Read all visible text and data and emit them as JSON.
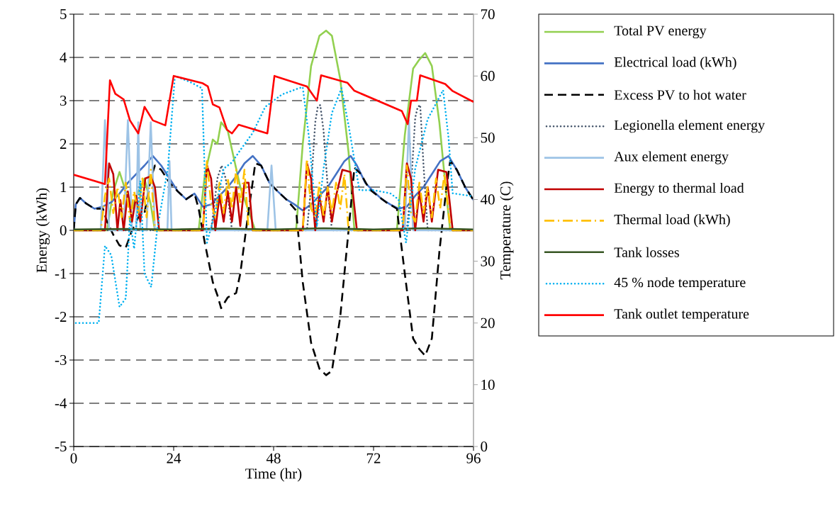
{
  "chart_data": {
    "type": "line",
    "xlabel": "Time (hr)",
    "ylabel": "Energy (kWh)",
    "y2label": "Temperature (C)",
    "xlim": [
      0,
      96
    ],
    "xticks": [
      0,
      24,
      48,
      72,
      96
    ],
    "ylim": [
      -5,
      5
    ],
    "yticks": [
      -5,
      -4,
      -3,
      -2,
      -1,
      0,
      1,
      2,
      3,
      4,
      5
    ],
    "y2lim": [
      0,
      70
    ],
    "y2ticks": [
      0,
      10,
      20,
      30,
      40,
      50,
      60,
      70
    ],
    "grid": "y",
    "legend": "right",
    "series": [
      {
        "name": "Total PV energy",
        "color": "#92d050",
        "line_style": "solid",
        "x": [
          0,
          8,
          9.5,
          11,
          12.5,
          14,
          15.5,
          17,
          18.5,
          19.5,
          30,
          31.5,
          33.4,
          34.5,
          35.4,
          37,
          40,
          43.6,
          53.4,
          55,
          57,
          59,
          60.6,
          62,
          64,
          66,
          67.4,
          77.6,
          79.5,
          81.5,
          83,
          84.4,
          86,
          87.8,
          89.5,
          90.4,
          96
        ],
        "values": [
          0,
          0,
          0.9,
          1.35,
          0.9,
          0.5,
          0.9,
          1.2,
          0.6,
          0,
          0,
          1.3,
          2.1,
          2.0,
          2.5,
          2.3,
          1.0,
          0,
          0,
          2.0,
          3.8,
          4.5,
          4.62,
          4.5,
          3.5,
          1.8,
          0,
          0,
          2.2,
          3.74,
          3.95,
          4.1,
          3.8,
          2.5,
          0.8,
          0,
          0
        ]
      },
      {
        "name": "Electrical load (kWh)",
        "color": "#4472c4",
        "line_style": "solid",
        "x": [
          0,
          0.5,
          1.5,
          3,
          5,
          7,
          9,
          11,
          13,
          15,
          17,
          19,
          21,
          23,
          25,
          27,
          29,
          31,
          33,
          35,
          37,
          39,
          41,
          43,
          45,
          47,
          49,
          51,
          53,
          55,
          57,
          59,
          61,
          63,
          65,
          66.5,
          68,
          70,
          72,
          74,
          76,
          78,
          80,
          82,
          84,
          86,
          88,
          90,
          92,
          94,
          96
        ],
        "values": [
          0,
          0.6,
          0.75,
          0.62,
          0.5,
          0.55,
          0.65,
          0.85,
          1.1,
          1.3,
          1.5,
          1.72,
          1.5,
          1.2,
          0.9,
          0.72,
          0.85,
          0.55,
          0.6,
          0.8,
          1.0,
          1.25,
          1.55,
          1.72,
          1.5,
          1.1,
          0.9,
          0.72,
          0.6,
          0.46,
          0.6,
          0.8,
          1.0,
          1.3,
          1.6,
          1.72,
          1.5,
          1.1,
          0.9,
          0.72,
          0.6,
          0.5,
          0.55,
          0.8,
          1.0,
          1.3,
          1.6,
          1.72,
          1.4,
          1.0,
          0.7
        ]
      },
      {
        "name": "Excess PV to hot water",
        "color": "#000000",
        "line_style": "dashed",
        "x": [
          0,
          0.5,
          1.5,
          3,
          5,
          7,
          8,
          9.5,
          11,
          12.5,
          14,
          15.5,
          17,
          18.5,
          19.5,
          21,
          23,
          25,
          27,
          29,
          30,
          31.5,
          33.4,
          34.5,
          35.4,
          37,
          39,
          40,
          41.5,
          43.6,
          45,
          47,
          49,
          51,
          53.4,
          55,
          57,
          59,
          60.6,
          62,
          64,
          66,
          67.4,
          69,
          71,
          73,
          75,
          77.6,
          79.5,
          81.5,
          83,
          84.4,
          86,
          87.8,
          89.5,
          90.4,
          92,
          94,
          96
        ],
        "values": [
          0,
          0.6,
          0.75,
          0.62,
          0.5,
          0.5,
          0.2,
          -0.1,
          -0.35,
          -0.4,
          0.0,
          0.3,
          0.4,
          1.2,
          1.5,
          1.4,
          1.1,
          0.9,
          0.72,
          0.85,
          0.5,
          -0.3,
          -1.2,
          -1.5,
          -1.8,
          -1.55,
          -1.45,
          -1.0,
          0.1,
          1.55,
          1.5,
          1.1,
          0.9,
          0.72,
          0.46,
          -1.2,
          -2.6,
          -3.2,
          -3.35,
          -3.25,
          -2.0,
          0.0,
          1.45,
          1.3,
          0.95,
          0.8,
          0.65,
          0.5,
          -1.0,
          -2.5,
          -2.75,
          -2.9,
          -2.5,
          -0.5,
          1.0,
          1.6,
          1.4,
          1.0,
          0.7
        ]
      },
      {
        "name": "Legionella element energy",
        "color": "#44546a",
        "line_style": "dotted",
        "x": [
          0,
          33,
          34.5,
          35.5,
          36.5,
          38,
          56,
          57,
          58,
          58.6,
          59.2,
          60,
          61,
          62,
          80,
          81,
          82,
          82.6,
          83.2,
          84,
          85,
          96
        ],
        "values": [
          0,
          0,
          1.2,
          1.5,
          1.2,
          0,
          0,
          1.0,
          2.5,
          2.85,
          2.9,
          2.3,
          1.0,
          0,
          0,
          1.0,
          2.6,
          2.85,
          2.9,
          1.5,
          0,
          0
        ]
      },
      {
        "name": "Aux element energy",
        "color": "#9dc3e6",
        "line_style": "solid",
        "x": [
          0,
          6.5,
          7.5,
          8.5,
          12,
          13,
          14,
          15,
          15.5,
          16,
          17.5,
          18.5,
          19.5,
          22.5,
          23,
          23.5,
          46.5,
          47.5,
          48.5,
          79.5,
          80.5,
          81.5,
          96
        ],
        "values": [
          0,
          0,
          2.55,
          0,
          0,
          2.55,
          0,
          0,
          2.5,
          0,
          0,
          2.5,
          0,
          0,
          1.6,
          0,
          0,
          1.5,
          0,
          0,
          2.55,
          0,
          0
        ]
      },
      {
        "name": "Energy to thermal load",
        "color": "#c00000",
        "line_style": "solid",
        "x": [
          0,
          7.5,
          8.5,
          9.5,
          10.5,
          11.2,
          12,
          13,
          14,
          15,
          16,
          17.2,
          18.5,
          19.5,
          20.5,
          31,
          32,
          33,
          34,
          35,
          36,
          37,
          38,
          39,
          40,
          41,
          42,
          43,
          55,
          56,
          57,
          58,
          59,
          60,
          61,
          62,
          63,
          64.5,
          66.5,
          68,
          79,
          80,
          81,
          82,
          83,
          84,
          85,
          86,
          87.5,
          89.5,
          91,
          96
        ],
        "values": [
          0,
          0,
          1.55,
          1.3,
          0,
          0.7,
          0,
          0.9,
          0.2,
          0.8,
          0.2,
          1.2,
          1.25,
          1.0,
          0,
          0,
          1.5,
          1.2,
          0,
          0.8,
          0.2,
          0.9,
          0.2,
          1.0,
          0.1,
          1.1,
          1.1,
          0,
          0,
          1.55,
          1.2,
          0,
          0.8,
          0.2,
          1.0,
          0.2,
          0.8,
          1.4,
          1.35,
          0,
          0,
          1.55,
          1.2,
          0,
          0.9,
          0.2,
          1.0,
          0.2,
          1.4,
          1.35,
          0,
          0
        ]
      },
      {
        "name": "Thermal load (kWh)",
        "color": "#ffc000",
        "line_style": "dashdot",
        "x": [
          0,
          6.5,
          7.5,
          8.5,
          9.5,
          10.5,
          11.5,
          12.5,
          13.5,
          14.5,
          15.5,
          16.5,
          17.5,
          18.5,
          19.5,
          31,
          32,
          33,
          34,
          35,
          36,
          37,
          38,
          39,
          40,
          41,
          42,
          55,
          56,
          57,
          58,
          59,
          60,
          61,
          62,
          63,
          64,
          65,
          66,
          79,
          80,
          81,
          82,
          83,
          84,
          85,
          86,
          87,
          88,
          89,
          90.5,
          96
        ],
        "values": [
          0,
          0,
          0.8,
          1.2,
          0.4,
          1.0,
          0.3,
          1.1,
          0.2,
          0.9,
          0.4,
          1.2,
          0.3,
          1.4,
          0,
          0,
          1.6,
          0.6,
          0.3,
          1.1,
          0.4,
          1.2,
          0.5,
          1.4,
          0.6,
          1.4,
          0,
          0,
          1.65,
          0.5,
          0.3,
          1.1,
          0.3,
          1.0,
          0.4,
          1.1,
          0.5,
          1.3,
          0,
          0,
          1.5,
          0.4,
          0.2,
          1.1,
          0.4,
          1.0,
          0.3,
          1.2,
          0.5,
          1.3,
          0,
          0
        ]
      },
      {
        "name": "Tank losses",
        "color": "#375623",
        "line_style": "solid",
        "x": [
          0,
          12,
          24,
          36,
          48,
          60,
          72,
          84,
          96
        ],
        "values": [
          0.02,
          0.03,
          0.02,
          0.04,
          0.02,
          0.05,
          0.02,
          0.05,
          0.02
        ]
      },
      {
        "name": "45 % node temperature",
        "color": "#00b0f0",
        "line_style": "dotted",
        "axis": "y2",
        "x": [
          0,
          6,
          7.5,
          9,
          11,
          12.5,
          13.5,
          14.5,
          16,
          17,
          18.6,
          20,
          22.6,
          24.3,
          28,
          30.8,
          32,
          34,
          36,
          38,
          40,
          43,
          46,
          50,
          54,
          55,
          56.5,
          58.4,
          60,
          62,
          64.3,
          66,
          68.6,
          72,
          76,
          78,
          79.8,
          82,
          85,
          88.7,
          90,
          91,
          96
        ],
        "values": [
          20,
          20,
          32.5,
          31,
          22.6,
          24,
          37,
          32,
          43,
          28,
          25.8,
          35,
          45,
          60,
          59,
          58,
          33,
          38,
          45,
          46,
          48,
          50.8,
          55,
          57,
          58,
          58.2,
          50,
          35.6,
          45,
          54,
          58,
          52,
          41.5,
          41.5,
          41,
          40,
          33,
          45,
          53,
          57.7,
          50,
          41,
          40.5
        ]
      },
      {
        "name": "Tank outlet temperature",
        "color": "#ff0000",
        "line_style": "solid",
        "axis": "y2",
        "x": [
          0,
          7.5,
          8.7,
          10,
          12,
          13.5,
          15.5,
          17,
          19,
          22,
          24,
          31,
          32.2,
          33.4,
          35,
          36.8,
          38,
          39.6,
          46.5,
          48.2,
          56,
          58.4,
          59.4,
          65.7,
          67.4,
          78.8,
          80.2,
          81,
          82.4,
          83.2,
          89.2,
          90.9,
          96
        ],
        "values": [
          44,
          42.5,
          59.3,
          57.1,
          56.2,
          52.8,
          50.7,
          55,
          52.8,
          52,
          60,
          58.8,
          58.3,
          55.4,
          54.9,
          51.3,
          50.7,
          52.1,
          50.7,
          60,
          58.3,
          56,
          60.1,
          58.9,
          57.6,
          54.3,
          52.2,
          56,
          56,
          60.1,
          58.7,
          57.6,
          55.8
        ]
      }
    ]
  }
}
